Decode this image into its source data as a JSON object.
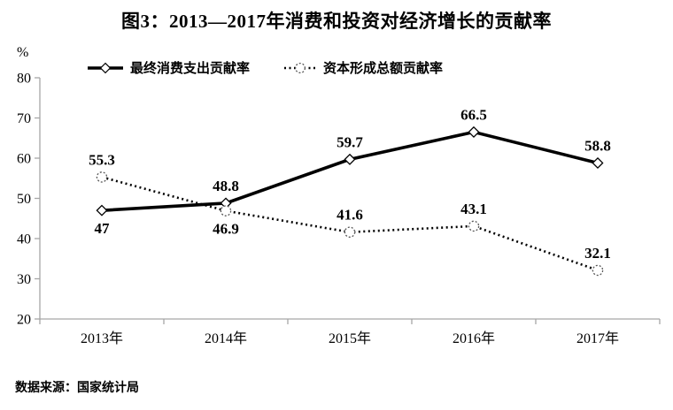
{
  "title": "图3：2013—2017年消费和投资对经济增长的贡献率",
  "source": "数据来源：国家统计局",
  "chart_data": {
    "type": "line",
    "title": "图3：2013—2017年消费和投资对经济增长的贡献率",
    "categories": [
      "2013年",
      "2014年",
      "2015年",
      "2016年",
      "2017年"
    ],
    "series": [
      {
        "name": "最终消费支出贡献率",
        "values": [
          47,
          48.8,
          59.7,
          66.5,
          58.8
        ],
        "line_style": "solid",
        "marker": "diamond",
        "label_pos": [
          "below",
          "above",
          "above",
          "above",
          "above"
        ]
      },
      {
        "name": "资本形成总额贡献率",
        "values": [
          55.3,
          46.9,
          41.6,
          43.1,
          32.1
        ],
        "line_style": "dotted",
        "marker": "circle",
        "label_pos": [
          "above",
          "below",
          "above",
          "above",
          "above"
        ]
      }
    ],
    "xlabel": "",
    "ylabel": "%",
    "ylim": [
      20,
      80
    ],
    "yticks": [
      20,
      30,
      40,
      50,
      60,
      70,
      80
    ],
    "grid": false,
    "legend_position": "top",
    "colors": {
      "series": "#000000",
      "axis": "#a6a6a6",
      "text": "#000000"
    }
  }
}
